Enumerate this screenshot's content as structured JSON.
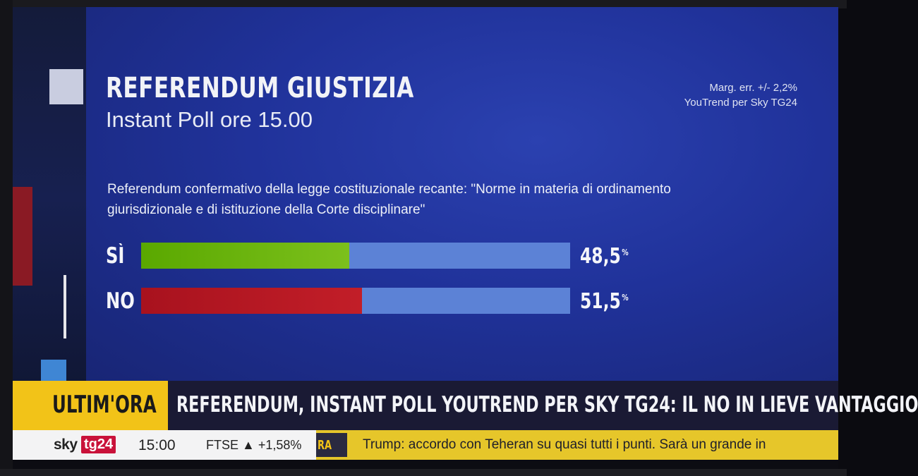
{
  "graphic": {
    "title": "REFERENDUM GIUSTIZIA",
    "subtitle": "Instant Poll ore 15.00",
    "margin_error": "Marg. err. +/- 2,2%",
    "source": "YouTrend per Sky TG24",
    "question": "Referendum confermativo della legge costituzionale recante: \"Norme in materia di ordinamento giurisdizionale e di istituzione della Corte disciplinare\""
  },
  "chart_data": {
    "type": "bar",
    "categories": [
      "SÌ",
      "NO"
    ],
    "values": [
      48.5,
      51.5
    ],
    "value_labels": [
      "48,5",
      "51,5"
    ],
    "unit": "%",
    "ylim": [
      0,
      100
    ],
    "colors": [
      "#6db810",
      "#b8141f"
    ],
    "track_color": "#5c82d6"
  },
  "ticker": {
    "label": "ULTIM'ORA",
    "headline": "REFERENDUM, INSTANT POLL YOUTREND PER SKY TG24: IL NO IN LIEVE VANTAGGIO"
  },
  "lower_bar": {
    "brand_sky": "sky",
    "brand_tg24": "tg24",
    "time": "15:00",
    "ftse": "FTSE ▲ +1,58%",
    "ora": "RA",
    "news": "Trump: accordo con Teheran su quasi tutti i punti. Sarà un grande in"
  },
  "colors": {
    "accent_yellow": "#f2c318",
    "panel_blue": "#20329a"
  }
}
